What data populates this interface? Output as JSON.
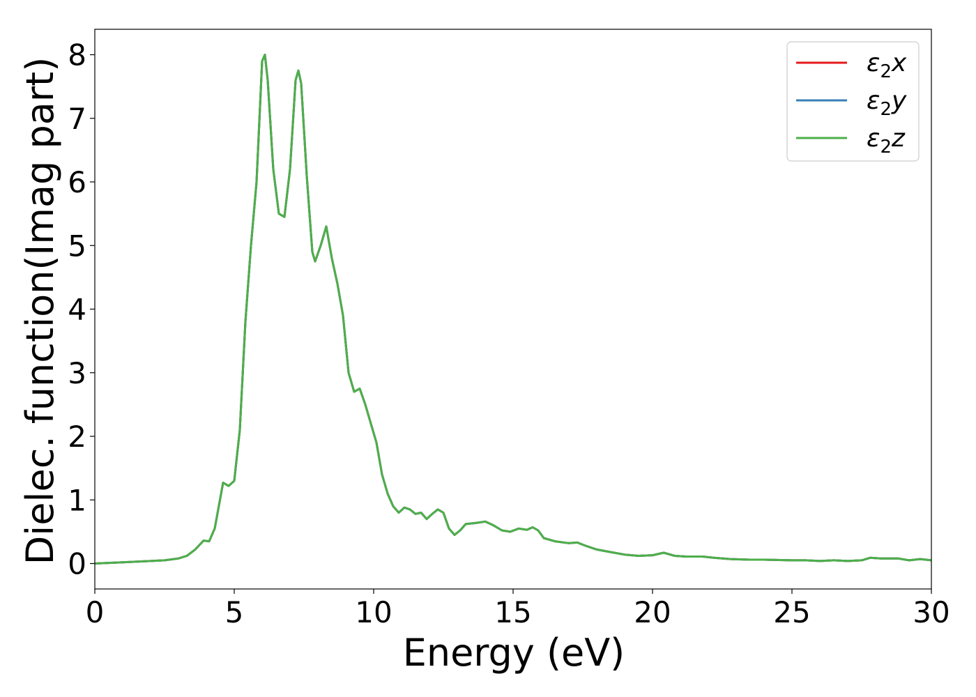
{
  "chart_data": {
    "type": "line",
    "title": "",
    "xlabel": "Energy (eV)",
    "ylabel": "Dielec. function(Imag part)",
    "xlim": [
      0,
      30
    ],
    "ylim": [
      -0.4,
      8.4
    ],
    "xticks": [
      0,
      5,
      10,
      15,
      20,
      25,
      30
    ],
    "yticks": [
      0,
      1,
      2,
      3,
      4,
      5,
      6,
      7,
      8
    ],
    "grid": false,
    "legend_position": "top-right",
    "series": [
      {
        "name": "ε₂x",
        "label_base": "ε",
        "label_sub": "2",
        "label_var": "x",
        "color": "#e41a1c"
      },
      {
        "name": "ε₂y",
        "label_base": "ε",
        "label_sub": "2",
        "label_var": "y",
        "color": "#377eb8"
      },
      {
        "name": "ε₂z",
        "label_base": "ε",
        "label_sub": "2",
        "label_var": "z",
        "color": "#4daf4a"
      }
    ],
    "note_identical_series": true,
    "x": [
      0,
      1,
      2,
      2.5,
      3,
      3.3,
      3.6,
      3.9,
      4.1,
      4.3,
      4.6,
      4.8,
      5.0,
      5.2,
      5.4,
      5.6,
      5.8,
      6.0,
      6.1,
      6.2,
      6.4,
      6.6,
      6.8,
      7.0,
      7.2,
      7.3,
      7.4,
      7.6,
      7.8,
      7.9,
      8.1,
      8.3,
      8.5,
      8.7,
      8.9,
      9.1,
      9.3,
      9.5,
      9.7,
      9.9,
      10.1,
      10.3,
      10.5,
      10.7,
      10.9,
      11.1,
      11.3,
      11.5,
      11.7,
      11.9,
      12.1,
      12.3,
      12.5,
      12.7,
      12.9,
      13.1,
      13.3,
      13.5,
      13.7,
      14.0,
      14.3,
      14.6,
      14.9,
      15.2,
      15.5,
      15.7,
      15.9,
      16.1,
      16.5,
      17.0,
      17.3,
      17.6,
      18.0,
      18.5,
      19.0,
      19.5,
      20.0,
      20.4,
      20.8,
      21.2,
      21.8,
      22.2,
      22.8,
      23.5,
      24.0,
      25.0,
      25.5,
      26.0,
      26.5,
      27.0,
      27.5,
      27.8,
      28.2,
      28.8,
      29.2,
      29.6,
      30.0
    ],
    "y": [
      0.0,
      0.02,
      0.04,
      0.05,
      0.08,
      0.12,
      0.22,
      0.36,
      0.35,
      0.55,
      1.27,
      1.22,
      1.3,
      2.1,
      3.8,
      5.0,
      6.0,
      7.9,
      8.0,
      7.6,
      6.2,
      5.5,
      5.45,
      6.2,
      7.6,
      7.75,
      7.55,
      6.1,
      4.9,
      4.75,
      5.0,
      5.3,
      4.8,
      4.4,
      3.9,
      3.0,
      2.7,
      2.75,
      2.5,
      2.2,
      1.9,
      1.4,
      1.1,
      0.9,
      0.8,
      0.88,
      0.85,
      0.78,
      0.8,
      0.7,
      0.78,
      0.85,
      0.8,
      0.55,
      0.45,
      0.52,
      0.62,
      0.63,
      0.64,
      0.66,
      0.6,
      0.52,
      0.5,
      0.55,
      0.53,
      0.57,
      0.52,
      0.4,
      0.35,
      0.32,
      0.33,
      0.28,
      0.22,
      0.18,
      0.14,
      0.12,
      0.13,
      0.17,
      0.12,
      0.11,
      0.11,
      0.09,
      0.07,
      0.06,
      0.06,
      0.05,
      0.05,
      0.04,
      0.05,
      0.04,
      0.05,
      0.09,
      0.08,
      0.08,
      0.05,
      0.07,
      0.05
    ]
  }
}
